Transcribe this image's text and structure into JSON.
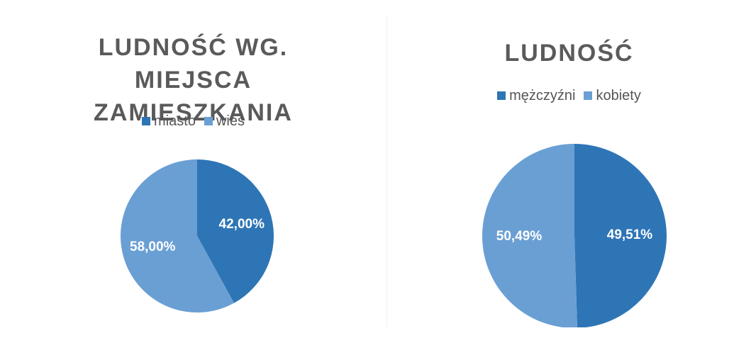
{
  "chart_data": [
    {
      "type": "pie",
      "title": "LUDNOŚĆ WG. MIEJSCA ZAMIESZKANIA",
      "categories": [
        "miasto",
        "wieś"
      ],
      "values": [
        42,
        58
      ],
      "value_labels": [
        "42,00%",
        "58,00%"
      ],
      "colors": [
        "#2e75b6",
        "#6a9fd4"
      ],
      "legend": "top"
    },
    {
      "type": "pie",
      "title": "LUDNOŚĆ",
      "categories": [
        "mężczyźni",
        "kobiety"
      ],
      "values": [
        49.51,
        50.49
      ],
      "value_labels": [
        "49,51%",
        "50,49%"
      ],
      "colors": [
        "#2e75b6",
        "#6a9fd4"
      ],
      "legend": "top"
    }
  ]
}
